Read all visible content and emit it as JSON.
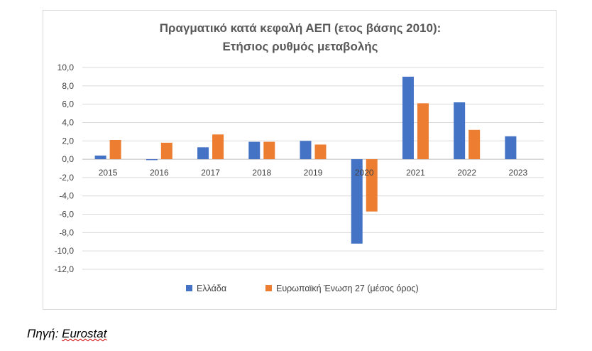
{
  "chart_data": {
    "type": "bar",
    "title_lines": [
      "Πραγματικό κατά κεφαλή ΑΕΠ (ετος βάσης 2010):",
      "Ετήσιος ρυθμός μεταβολής"
    ],
    "categories": [
      "2015",
      "2016",
      "2017",
      "2018",
      "2019",
      "2020",
      "2021",
      "2022",
      "2023"
    ],
    "series": [
      {
        "name": "Ελλάδα",
        "color": "#4472c4",
        "values": [
          0.4,
          -0.1,
          1.3,
          1.9,
          2.0,
          -9.2,
          9.0,
          6.2,
          2.5
        ]
      },
      {
        "name": "Ευρωπαϊκή Ένωση 27 (μέσος όρος)",
        "color": "#ed7d31",
        "values": [
          2.1,
          1.8,
          2.7,
          1.9,
          1.6,
          -5.7,
          6.1,
          3.2,
          null
        ]
      }
    ],
    "ylim": [
      -12,
      10
    ],
    "yticks": [
      10,
      8,
      6,
      4,
      2,
      0,
      -2,
      -4,
      -6,
      -8,
      -10,
      -12
    ],
    "ytick_labels": [
      "10,0",
      "8,0",
      "6,0",
      "4,0",
      "2,0",
      "0,0",
      "-2,0",
      "-4,0",
      "-6,0",
      "-8,0",
      "-10,0",
      "-12,0"
    ],
    "grid": true,
    "legend_position": "bottom"
  },
  "source": {
    "prefix": "Πηγή: ",
    "name": "Eurostat"
  }
}
